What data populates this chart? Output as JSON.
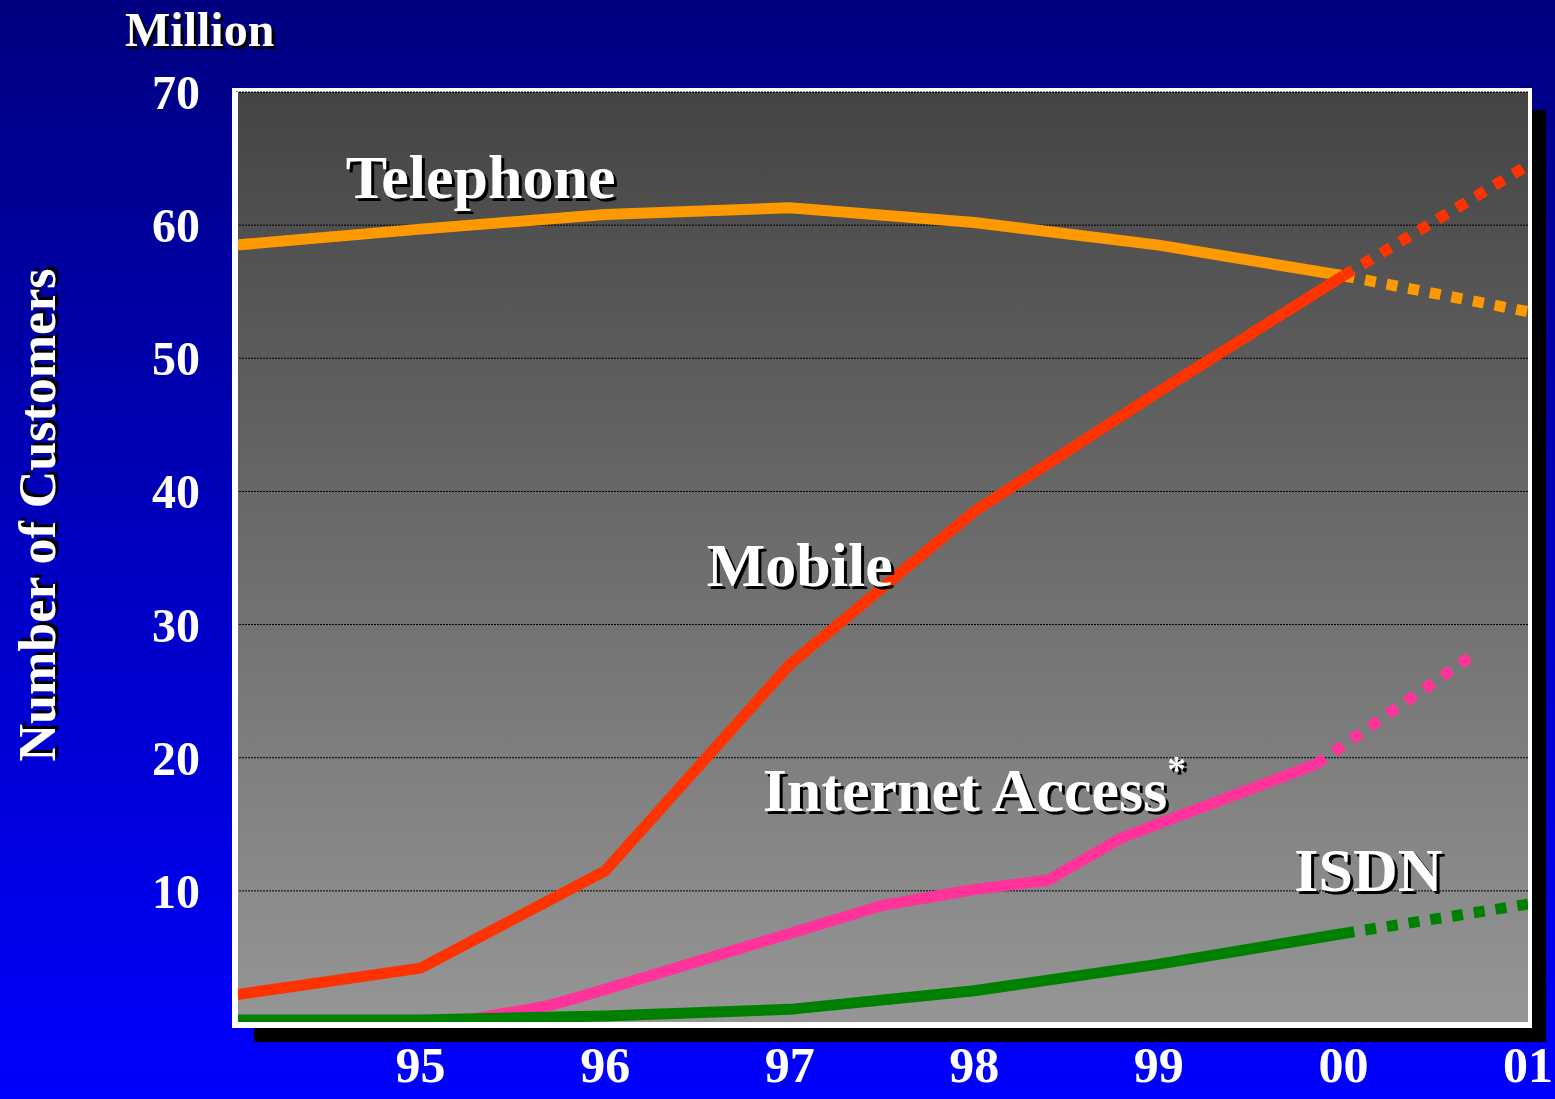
{
  "chart_data": {
    "type": "line",
    "ylabel": "Number of Customers",
    "annotations": [
      "Million"
    ],
    "xlim": [
      1994,
      2001
    ],
    "xticks": [
      {
        "value": 1995,
        "label": "95"
      },
      {
        "value": 1996,
        "label": "96"
      },
      {
        "value": 1997,
        "label": "97"
      },
      {
        "value": 1998,
        "label": "98"
      },
      {
        "value": 1999,
        "label": "99"
      },
      {
        "value": 2000,
        "label": "00"
      },
      {
        "value": 2001,
        "label": "01"
      }
    ],
    "ylim": [
      0,
      70
    ],
    "yticks": [
      10,
      20,
      30,
      40,
      50,
      60,
      70
    ],
    "grid": "y",
    "legend": false,
    "marker": "none",
    "line_style": "solid",
    "series": [
      {
        "name": "Telephone",
        "color": "#ff9900",
        "x": [
          1994,
          1995,
          1996,
          1997,
          1998,
          1999,
          2000
        ],
        "values": [
          58.5,
          59.7,
          60.8,
          61.3,
          60.2,
          58.5,
          56.2
        ]
      },
      {
        "color": "#ff9900",
        "line_style": "dotted",
        "x": [
          2000,
          2001
        ],
        "values": [
          56.2,
          53.5
        ]
      },
      {
        "name": "Mobile",
        "color": "#ff3300",
        "x": [
          1994,
          1995,
          1996,
          1997,
          1998,
          1999,
          2000
        ],
        "values": [
          2.2,
          4.2,
          11.5,
          27,
          38.5,
          47.5,
          56.2
        ]
      },
      {
        "color": "#ff3300",
        "line_style": "dotted",
        "x": [
          2000,
          2001
        ],
        "values": [
          56.2,
          64.5
        ]
      },
      {
        "name": "Internet Access$^{*}$",
        "color": "#ff3399",
        "x": [
          1995.25,
          1995.7,
          1996,
          1997,
          1997.5,
          1998,
          1998.4,
          1998.8,
          1999.85
        ],
        "values": [
          0.3,
          1.4,
          2.6,
          6.8,
          8.9,
          10.1,
          10.8,
          14,
          19.5
        ]
      },
      {
        "color": "#ff3399",
        "line_style": "dotted",
        "x": [
          1999.85,
          2000.7
        ],
        "values": [
          19.5,
          27.7
        ]
      },
      {
        "name": "ISDN",
        "color": "#008000",
        "x": [
          1994,
          1995,
          1996,
          1997,
          1998,
          1999,
          2000
        ],
        "values": [
          0.3,
          0.3,
          0.6,
          1.1,
          2.5,
          4.5,
          6.8
        ]
      },
      {
        "color": "#008000",
        "line_style": "dotted",
        "x": [
          2000,
          2001
        ],
        "values": [
          6.8,
          9
        ]
      }
    ]
  }
}
